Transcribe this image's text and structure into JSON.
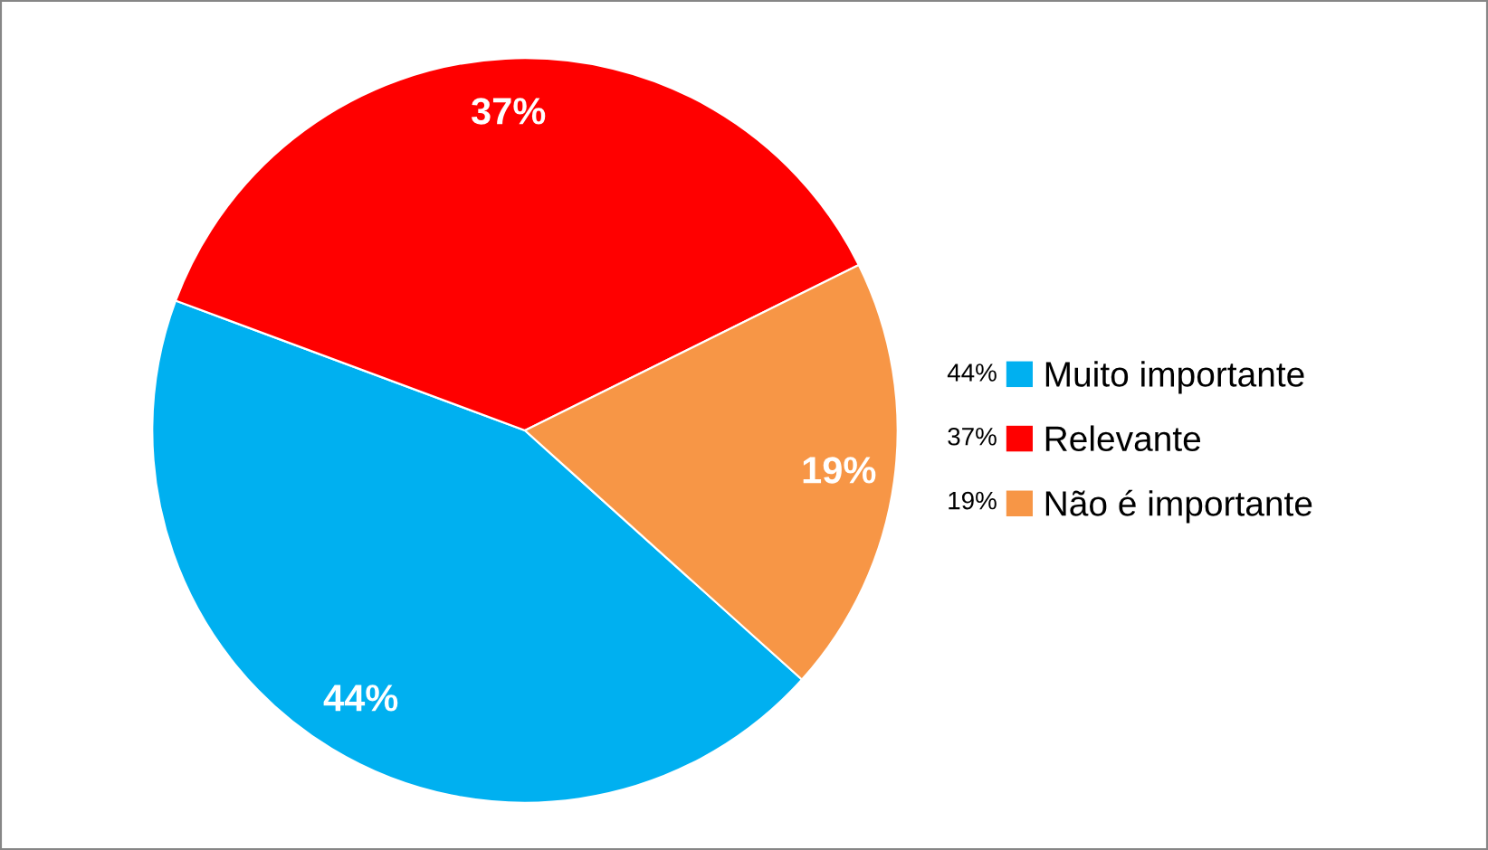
{
  "chart_data": {
    "type": "pie",
    "categories": [
      "Muito importante",
      "Relevante",
      "Não é importante"
    ],
    "values": [
      44,
      37,
      19
    ],
    "value_labels": [
      "44%",
      "37%",
      "19%"
    ],
    "colors": [
      "#00b0f0",
      "#ff0000",
      "#f79646"
    ],
    "legend": "right"
  }
}
